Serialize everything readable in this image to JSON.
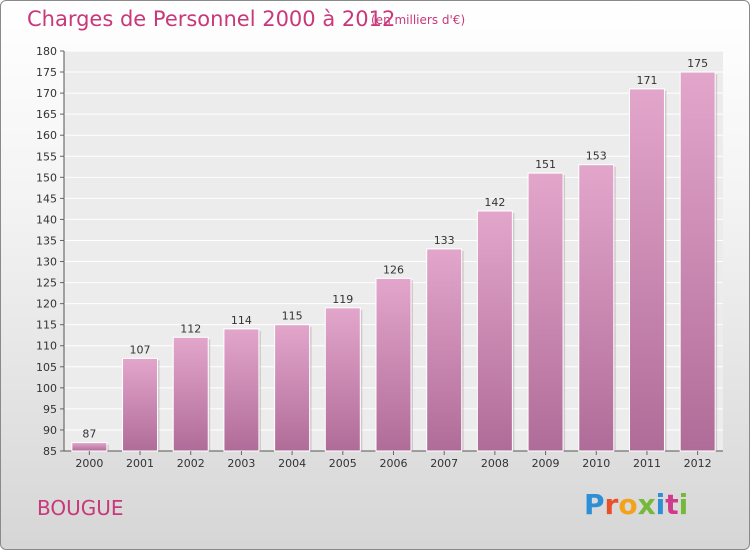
{
  "header": {
    "title": "Charges de Personnel 2000 à 2012",
    "subtitle": "(en milliers d'€)"
  },
  "footer": {
    "commune": "BOUGUE",
    "logo_letters": [
      "P",
      "r",
      "o",
      "x",
      "i",
      "t",
      "i"
    ],
    "logo_colors": [
      "#2f8fd6",
      "#e8502a",
      "#f2a31b",
      "#76b83a",
      "#2f8fd6",
      "#d03a8c",
      "#76b83a"
    ]
  },
  "colors": {
    "bar_top": "#e3a6cb",
    "bar_bottom": "#b06c98",
    "text": "#333333",
    "accent": "#c8387a"
  },
  "chart_data": {
    "type": "bar",
    "categories": [
      "2000",
      "2001",
      "2002",
      "2003",
      "2004",
      "2005",
      "2006",
      "2007",
      "2008",
      "2009",
      "2010",
      "2011",
      "2012"
    ],
    "values": [
      87,
      107,
      112,
      114,
      115,
      119,
      126,
      133,
      142,
      151,
      153,
      171,
      175
    ],
    "title": "Charges de Personnel 2000 à 2012",
    "xlabel": "",
    "ylabel": "",
    "ylim": [
      85,
      180
    ],
    "yticks": [
      85,
      90,
      95,
      100,
      105,
      110,
      115,
      120,
      125,
      130,
      135,
      140,
      145,
      150,
      155,
      160,
      165,
      170,
      175,
      180
    ],
    "grid": true,
    "legend": "none"
  }
}
